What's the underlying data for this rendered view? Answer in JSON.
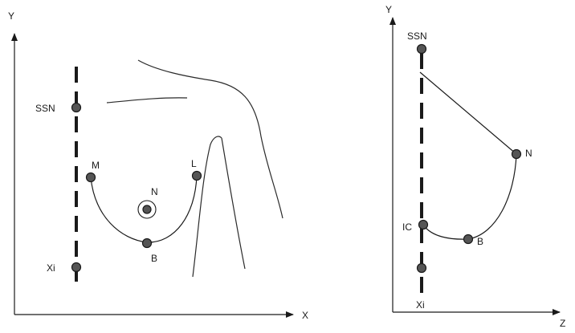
{
  "frontal_view": {
    "axes": {
      "x_label": "X",
      "y_label": "Y"
    },
    "landmarks": {
      "ssn": "SSN",
      "medial": "M",
      "lateral": "L",
      "nipple": "N",
      "bottom": "B",
      "xiphoid": "Xi"
    }
  },
  "lateral_view": {
    "axes": {
      "y_label": "Y",
      "z_label": "Z"
    },
    "landmarks": {
      "ssn": "SSN",
      "nipple": "N",
      "inframammary_crease": "IC",
      "bottom": "B",
      "xiphoid": "Xi"
    }
  },
  "colors": {
    "ink": "#1a1a1a",
    "dot_fill": "#555555",
    "background": "#ffffff"
  }
}
